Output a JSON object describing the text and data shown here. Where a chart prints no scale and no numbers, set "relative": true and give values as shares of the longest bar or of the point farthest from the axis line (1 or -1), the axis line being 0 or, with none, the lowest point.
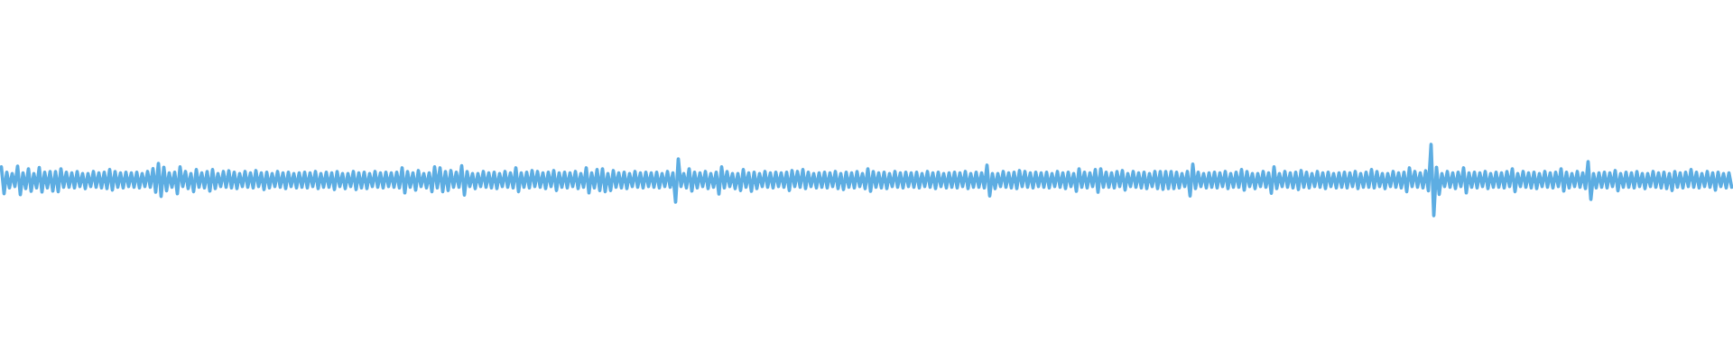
{
  "chart_data": {
    "type": "line",
    "relative": true,
    "categories": [
      null,
      null,
      null,
      null,
      null,
      null,
      null,
      null,
      null,
      null,
      null,
      null,
      null,
      null,
      null,
      null,
      null,
      null,
      null,
      null,
      null,
      null,
      null,
      null,
      null,
      null,
      null,
      null,
      null,
      null,
      null,
      null,
      null,
      null,
      null,
      null,
      null,
      null,
      null,
      null,
      null,
      null,
      null,
      null,
      null,
      null,
      null,
      null,
      null,
      null,
      null,
      null,
      null,
      null,
      null,
      null,
      null,
      null,
      null,
      null,
      null,
      null,
      null,
      null,
      null,
      null,
      null,
      null,
      null,
      null,
      null,
      null,
      null,
      null,
      null,
      null,
      null,
      null,
      null,
      null,
      null,
      null,
      null,
      null,
      null,
      null,
      null,
      null,
      null,
      null,
      null,
      null,
      null,
      null,
      null,
      null,
      null,
      null,
      null,
      null,
      null,
      null,
      null,
      null,
      null,
      null,
      null,
      null,
      null,
      null,
      null,
      null,
      null,
      null,
      null,
      null,
      null,
      null,
      null,
      null,
      null,
      null,
      null,
      null,
      null,
      null,
      null,
      null,
      null,
      null,
      null,
      null,
      null,
      null,
      null,
      null,
      null,
      null,
      null,
      null,
      null,
      null,
      null,
      null,
      null,
      null,
      null,
      null,
      null,
      null,
      null,
      null,
      null,
      null,
      null,
      null,
      null,
      null,
      null,
      null,
      null,
      null,
      null,
      null,
      null,
      null,
      null,
      null,
      null,
      null,
      null,
      null,
      null,
      null,
      null,
      null,
      null,
      null,
      null,
      null,
      null,
      null,
      null,
      null,
      null,
      null,
      null,
      null,
      null,
      null,
      null,
      null,
      null,
      null,
      null,
      null,
      null,
      null,
      null,
      null,
      null,
      null,
      null,
      null,
      null,
      null,
      null,
      null,
      null,
      null,
      null,
      null,
      null,
      null,
      null,
      null,
      null,
      null,
      null,
      null,
      null,
      null,
      null,
      null,
      null,
      null,
      null,
      null,
      null,
      null,
      null,
      null,
      null,
      null,
      null,
      null,
      null,
      null,
      null,
      null,
      null,
      null,
      null,
      null,
      null,
      null,
      null,
      null,
      null,
      null,
      null,
      null,
      null,
      null,
      null,
      null,
      null,
      null,
      null,
      null,
      null,
      null,
      null,
      null,
      null,
      null,
      null,
      null,
      null,
      null,
      null,
      null,
      null,
      null,
      null,
      null,
      null,
      null,
      null,
      null,
      null,
      null,
      null,
      null,
      null,
      null,
      null,
      null,
      null,
      null,
      null,
      null,
      null,
      null,
      null,
      null,
      null,
      null,
      null,
      null,
      null,
      null,
      null,
      null,
      null,
      null,
      null,
      null,
      null,
      null,
      null,
      null,
      null,
      null,
      null,
      null,
      null,
      null,
      null,
      null,
      null,
      null,
      null,
      null,
      null,
      null,
      null,
      null,
      null,
      null,
      null,
      null,
      null,
      null,
      null,
      null,
      null,
      null,
      null,
      null,
      null,
      null,
      null,
      null,
      null,
      null,
      null,
      null,
      null,
      null,
      null,
      null,
      null,
      null,
      null,
      null,
      null,
      null,
      null,
      null,
      null,
      null,
      null,
      null,
      null,
      null,
      null,
      null,
      null,
      null,
      null,
      null,
      null,
      null,
      null,
      null,
      null,
      null,
      null,
      null,
      null,
      null,
      null,
      null,
      null,
      null,
      null,
      null,
      null,
      null,
      null,
      null,
      null,
      null,
      null,
      null,
      null,
      null,
      null,
      null,
      null,
      null,
      null,
      null,
      null,
      null,
      null,
      null,
      null,
      null,
      null,
      null,
      null,
      null,
      null,
      null,
      null,
      null,
      null,
      null,
      null,
      null,
      null,
      null,
      null,
      null,
      null,
      null,
      null,
      null,
      null,
      null,
      null,
      null,
      null,
      null,
      null,
      null,
      null,
      null,
      null,
      null,
      null,
      null,
      null,
      null,
      null,
      null,
      null,
      null,
      null,
      null,
      null,
      null,
      null,
      null,
      null,
      null,
      null,
      null,
      null,
      null,
      null,
      null,
      null,
      null,
      null,
      null,
      null,
      null,
      null,
      null,
      null,
      null,
      null,
      null,
      null,
      null,
      null,
      null,
      null,
      null,
      null,
      null,
      null,
      null,
      null,
      null,
      null,
      null,
      null,
      null,
      null,
      null,
      null,
      null,
      null,
      null,
      null,
      null,
      null,
      null,
      null,
      null,
      null,
      null,
      null,
      null,
      null,
      null,
      null,
      null,
      null,
      null,
      null,
      null,
      null,
      null,
      null,
      null,
      null,
      null,
      null,
      null,
      null,
      null,
      null,
      null,
      null,
      null,
      null,
      null,
      null,
      null,
      null,
      null,
      null,
      null,
      null,
      null,
      null,
      null,
      null,
      null,
      null,
      null,
      null,
      null,
      null,
      null,
      null,
      null,
      null,
      null,
      null,
      null,
      null,
      null,
      null,
      null,
      null,
      null,
      null,
      null,
      null,
      null,
      null,
      null,
      null,
      null,
      null,
      null,
      null,
      null,
      null,
      null,
      null,
      null,
      null,
      null,
      null,
      null,
      null,
      null,
      null,
      null,
      null,
      null,
      null,
      null,
      null,
      null,
      null,
      null,
      null,
      null,
      null,
      null,
      null,
      null,
      null,
      null,
      null,
      null,
      null,
      null,
      null,
      null,
      null,
      null,
      null,
      null,
      null,
      null,
      null,
      null,
      null,
      null,
      null,
      null,
      null,
      null,
      null,
      null,
      null,
      null,
      null,
      null,
      null,
      null,
      null,
      null,
      null,
      null,
      null,
      null,
      null,
      null,
      null,
      null
    ],
    "series": [
      {
        "color": "#5dade2",
        "values": [
          0.684,
          0.31,
          0.61,
          0.39,
          0.59,
          0.41,
          0.696,
          0.295,
          0.6,
          0.38,
          0.658,
          0.342,
          0.59,
          0.39,
          0.675,
          0.333,
          0.61,
          0.39,
          0.62,
          0.346,
          0.62,
          0.338,
          0.658,
          0.4,
          0.61,
          0.4,
          0.6,
          0.39,
          0.62,
          0.41,
          0.59,
          0.38,
          0.59,
          0.41,
          0.62,
          0.4,
          0.6,
          0.39,
          0.61,
          0.38,
          0.646,
          0.36,
          0.62,
          0.4,
          0.6,
          0.39,
          0.61,
          0.41,
          0.6,
          0.4,
          0.61,
          0.39,
          0.59,
          0.41,
          0.62,
          0.4,
          0.66,
          0.33,
          0.734,
          0.27,
          0.68,
          0.35,
          0.6,
          0.4,
          0.61,
          0.308,
          0.684,
          0.41,
          0.62,
          0.38,
          0.59,
          0.338,
          0.646,
          0.4,
          0.6,
          0.39,
          0.62,
          0.346,
          0.646,
          0.38,
          0.59,
          0.41,
          0.62,
          0.4,
          0.63,
          0.39,
          0.61,
          0.38,
          0.59,
          0.41,
          0.62,
          0.4,
          0.6,
          0.39,
          0.633,
          0.41,
          0.6,
          0.367,
          0.61,
          0.39,
          0.59,
          0.41,
          0.62,
          0.4,
          0.6,
          0.38,
          0.61,
          0.41,
          0.59,
          0.39,
          0.6,
          0.4,
          0.61,
          0.39,
          0.6,
          0.41,
          0.62,
          0.38,
          0.59,
          0.4,
          0.61,
          0.4,
          0.6,
          0.367,
          0.62,
          0.41,
          0.59,
          0.38,
          0.59,
          0.41,
          0.62,
          0.367,
          0.6,
          0.39,
          0.61,
          0.38,
          0.59,
          0.41,
          0.62,
          0.4,
          0.6,
          0.39,
          0.61,
          0.41,
          0.6,
          0.4,
          0.61,
          0.39,
          0.671,
          0.32,
          0.62,
          0.4,
          0.6,
          0.358,
          0.633,
          0.41,
          0.59,
          0.39,
          0.6,
          0.338,
          0.684,
          0.39,
          0.671,
          0.338,
          0.62,
          0.354,
          0.633,
          0.4,
          0.61,
          0.4,
          0.7,
          0.291,
          0.62,
          0.41,
          0.59,
          0.38,
          0.59,
          0.41,
          0.62,
          0.4,
          0.6,
          0.39,
          0.61,
          0.38,
          0.59,
          0.41,
          0.62,
          0.4,
          0.6,
          0.39,
          0.671,
          0.338,
          0.6,
          0.4,
          0.61,
          0.39,
          0.633,
          0.41,
          0.62,
          0.4,
          0.6,
          0.38,
          0.61,
          0.41,
          0.633,
          0.354,
          0.6,
          0.4,
          0.61,
          0.39,
          0.6,
          0.41,
          0.62,
          0.38,
          0.59,
          0.4,
          0.671,
          0.32,
          0.6,
          0.39,
          0.646,
          0.354,
          0.658,
          0.338,
          0.59,
          0.354,
          0.633,
          0.4,
          0.6,
          0.39,
          0.61,
          0.38,
          0.59,
          0.41,
          0.62,
          0.4,
          0.6,
          0.39,
          0.61,
          0.41,
          0.6,
          0.4,
          0.61,
          0.39,
          0.59,
          0.41,
          0.62,
          0.4,
          0.6,
          0.19,
          0.797,
          0.41,
          0.59,
          0.39,
          0.658,
          0.346,
          0.61,
          0.39,
          0.6,
          0.41,
          0.62,
          0.38,
          0.59,
          0.4,
          0.61,
          0.304,
          0.684,
          0.39,
          0.62,
          0.41,
          0.59,
          0.38,
          0.59,
          0.354,
          0.646,
          0.4,
          0.6,
          0.342,
          0.61,
          0.38,
          0.59,
          0.41,
          0.62,
          0.4,
          0.6,
          0.39,
          0.61,
          0.41,
          0.6,
          0.4,
          0.61,
          0.354,
          0.633,
          0.41,
          0.62,
          0.4,
          0.646,
          0.38,
          0.61,
          0.41,
          0.59,
          0.39,
          0.6,
          0.4,
          0.61,
          0.39,
          0.6,
          0.41,
          0.62,
          0.38,
          0.59,
          0.367,
          0.61,
          0.4,
          0.6,
          0.39,
          0.62,
          0.41,
          0.59,
          0.38,
          0.658,
          0.342,
          0.62,
          0.4,
          0.6,
          0.39,
          0.61,
          0.38,
          0.59,
          0.41,
          0.62,
          0.4,
          0.6,
          0.39,
          0.61,
          0.41,
          0.6,
          0.4,
          0.61,
          0.39,
          0.59,
          0.41,
          0.62,
          0.4,
          0.6,
          0.38,
          0.61,
          0.41,
          0.59,
          0.39,
          0.6,
          0.4,
          0.61,
          0.39,
          0.6,
          0.41,
          0.62,
          0.38,
          0.59,
          0.4,
          0.61,
          0.4,
          0.6,
          0.39,
          0.709,
          0.278,
          0.59,
          0.38,
          0.59,
          0.41,
          0.62,
          0.4,
          0.6,
          0.39,
          0.61,
          0.38,
          0.633,
          0.41,
          0.62,
          0.4,
          0.6,
          0.39,
          0.61,
          0.41,
          0.6,
          0.4,
          0.61,
          0.39,
          0.59,
          0.41,
          0.62,
          0.4,
          0.6,
          0.38,
          0.61,
          0.41,
          0.59,
          0.342,
          0.658,
          0.4,
          0.61,
          0.39,
          0.6,
          0.41,
          0.646,
          0.33,
          0.658,
          0.4,
          0.61,
          0.4,
          0.6,
          0.39,
          0.62,
          0.41,
          0.633,
          0.36,
          0.59,
          0.41,
          0.62,
          0.4,
          0.6,
          0.39,
          0.61,
          0.38,
          0.59,
          0.41,
          0.62,
          0.38,
          0.62,
          0.37,
          0.62,
          0.38,
          0.62,
          0.38,
          0.61,
          0.39,
          0.59,
          0.41,
          0.62,
          0.278,
          0.722,
          0.38,
          0.61,
          0.41,
          0.59,
          0.39,
          0.6,
          0.4,
          0.61,
          0.39,
          0.6,
          0.41,
          0.62,
          0.38,
          0.59,
          0.4,
          0.61,
          0.4,
          0.646,
          0.358,
          0.62,
          0.41,
          0.59,
          0.38,
          0.59,
          0.41,
          0.62,
          0.4,
          0.6,
          0.316,
          0.684,
          0.38,
          0.59,
          0.41,
          0.62,
          0.4,
          0.6,
          0.39,
          0.61,
          0.367,
          0.633,
          0.4,
          0.61,
          0.39,
          0.59,
          0.41,
          0.62,
          0.4,
          0.6,
          0.38,
          0.61,
          0.41,
          0.59,
          0.39,
          0.6,
          0.4,
          0.61,
          0.39,
          0.6,
          0.41,
          0.62,
          0.38,
          0.59,
          0.4,
          0.61,
          0.4,
          0.646,
          0.39,
          0.62,
          0.41,
          0.59,
          0.38,
          0.59,
          0.41,
          0.62,
          0.4,
          0.6,
          0.39,
          0.61,
          0.338,
          0.671,
          0.41,
          0.62,
          0.4,
          0.6,
          0.39,
          0.63,
          0.35,
          1,
          0,
          0.68,
          0.3,
          0.59,
          0.41,
          0.62,
          0.4,
          0.6,
          0.38,
          0.61,
          0.41,
          0.671,
          0.32,
          0.6,
          0.4,
          0.61,
          0.39,
          0.6,
          0.41,
          0.62,
          0.38,
          0.59,
          0.4,
          0.61,
          0.4,
          0.6,
          0.39,
          0.62,
          0.41,
          0.658,
          0.338,
          0.59,
          0.41,
          0.62,
          0.4,
          0.6,
          0.39,
          0.61,
          0.38,
          0.59,
          0.41,
          0.62,
          0.4,
          0.6,
          0.39,
          0.61,
          0.41,
          0.658,
          0.346,
          0.61,
          0.39,
          0.59,
          0.41,
          0.62,
          0.4,
          0.6,
          0.38,
          0.759,
          0.228,
          0.59,
          0.39,
          0.6,
          0.4,
          0.61,
          0.39,
          0.6,
          0.41,
          0.633,
          0.35,
          0.59,
          0.4,
          0.61,
          0.4,
          0.6,
          0.39,
          0.62,
          0.41,
          0.59,
          0.38,
          0.59,
          0.41,
          0.62,
          0.4,
          0.6,
          0.39,
          0.61,
          0.38,
          0.59,
          0.354,
          0.62,
          0.4,
          0.6,
          0.39,
          0.61,
          0.41,
          0.646,
          0.4,
          0.61,
          0.39,
          0.59,
          0.41,
          0.62,
          0.4,
          0.6,
          0.358,
          0.61,
          0.41,
          0.59,
          0.39,
          0.6,
          0.4
        ]
      }
    ]
  }
}
